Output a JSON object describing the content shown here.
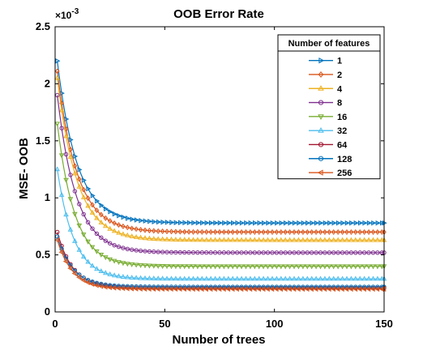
{
  "chart_data": {
    "type": "line",
    "title": "OOB Error Rate",
    "xlabel": "Number of trees",
    "ylabel": "MSE- OOB",
    "xlim": [
      0,
      150
    ],
    "ylim": [
      0,
      0.0025
    ],
    "x_ticks": [
      0,
      50,
      100,
      150
    ],
    "y_ticks": [
      0,
      0.0005,
      0.001,
      0.0015,
      0.002,
      0.0025
    ],
    "y_tick_labels": [
      "0",
      "0.5",
      "1",
      "1.5",
      "2",
      "2.5"
    ],
    "y_exponent_label": "×10",
    "y_exponent_power": "-3",
    "grid": false,
    "legend": {
      "title": "Number of features",
      "placement": "top-right"
    },
    "n_trees": 150,
    "series": [
      {
        "name": "1",
        "color": "#0072BD",
        "marker": "triangle-right",
        "start": 0.0022,
        "end": 0.00078,
        "decay": 9
      },
      {
        "name": "2",
        "color": "#D95319",
        "marker": "diamond",
        "start": 0.00211,
        "end": 0.0007,
        "decay": 9
      },
      {
        "name": "4",
        "color": "#EDB120",
        "marker": "triangle-up",
        "start": 0.00205,
        "end": 0.00063,
        "decay": 9
      },
      {
        "name": "8",
        "color": "#7E2F8E",
        "marker": "circle",
        "start": 0.0019,
        "end": 0.00052,
        "decay": 8.5
      },
      {
        "name": "16",
        "color": "#77AC30",
        "marker": "triangle-down",
        "start": 0.00165,
        "end": 0.0004,
        "decay": 8
      },
      {
        "name": "32",
        "color": "#4DBEEE",
        "marker": "triangle-up",
        "start": 0.00125,
        "end": 0.00029,
        "decay": 7.5
      },
      {
        "name": "64",
        "color": "#A2142F",
        "marker": "circle",
        "start": 0.0007,
        "end": 0.00021,
        "decay": 7
      },
      {
        "name": "128",
        "color": "#0072BD",
        "marker": "circle",
        "start": 0.00066,
        "end": 0.00022,
        "decay": 7
      },
      {
        "name": "256",
        "color": "#D95319",
        "marker": "triangle-left",
        "start": 0.00063,
        "end": 0.0002,
        "decay": 7
      }
    ]
  }
}
